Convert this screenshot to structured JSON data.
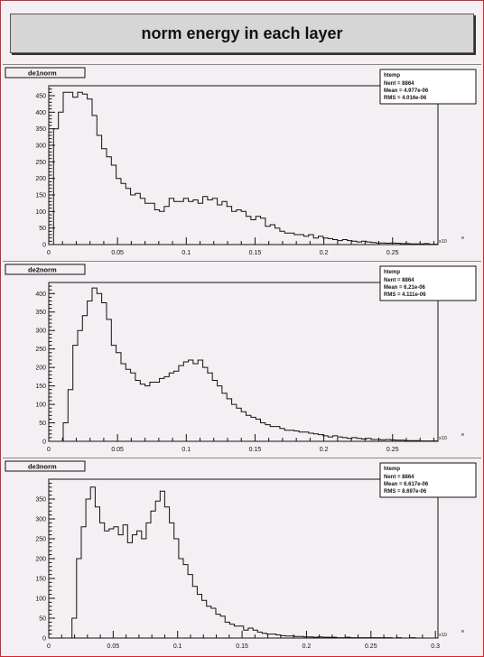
{
  "window": {
    "title": "norm energy in each layer"
  },
  "chart_data": [
    {
      "type": "bar",
      "hist_name": "de1norm",
      "stats": {
        "title": "htemp",
        "lines": [
          "Nent = 8864",
          "Mean = 4.977e-06",
          "RMS = 4.016e-06"
        ]
      },
      "x_multiplier_label": "x10",
      "x_unit_mark": "e",
      "xlim": [
        0,
        0.283
      ],
      "ylim": [
        0,
        480
      ],
      "x_ticks": [
        0,
        0.05,
        0.1,
        0.15,
        0.2,
        0.25
      ],
      "x_tick_labels": [
        "0",
        "0.05",
        "0.1",
        "0.15",
        "0.2",
        "0.25"
      ],
      "y_ticks": [
        0,
        50,
        100,
        150,
        200,
        250,
        300,
        350,
        400,
        450
      ],
      "bin_width": 0.0035,
      "values": [
        0,
        350,
        400,
        460,
        460,
        445,
        460,
        455,
        440,
        390,
        330,
        290,
        265,
        240,
        200,
        185,
        170,
        150,
        155,
        140,
        125,
        125,
        105,
        100,
        115,
        140,
        130,
        130,
        140,
        130,
        135,
        125,
        145,
        135,
        140,
        120,
        130,
        115,
        100,
        105,
        100,
        85,
        75,
        85,
        80,
        55,
        60,
        50,
        40,
        35,
        35,
        30,
        30,
        25,
        30,
        20,
        25,
        20,
        18,
        15,
        12,
        15,
        12,
        10,
        8,
        10,
        8,
        6,
        5,
        5,
        4,
        5,
        4,
        3,
        3,
        2,
        2,
        2,
        3,
        1,
        1
      ]
    },
    {
      "type": "bar",
      "hist_name": "de2norm",
      "stats": {
        "title": "htemp",
        "lines": [
          "Nent = 8864",
          "Mean = 6.21e-06",
          "RMS = 4.111e-06"
        ]
      },
      "x_multiplier_label": "x10",
      "x_unit_mark": "e",
      "xlim": [
        0,
        0.283
      ],
      "ylim": [
        0,
        430
      ],
      "x_ticks": [
        0,
        0.05,
        0.1,
        0.15,
        0.2,
        0.25
      ],
      "x_tick_labels": [
        "0",
        "0.05",
        "0.1",
        "0.15",
        "0.2",
        "0.25"
      ],
      "y_ticks": [
        0,
        50,
        100,
        150,
        200,
        250,
        300,
        350,
        400
      ],
      "bin_width": 0.0035,
      "values": [
        0,
        0,
        0,
        50,
        140,
        260,
        300,
        340,
        380,
        415,
        400,
        375,
        330,
        260,
        240,
        210,
        195,
        185,
        165,
        155,
        150,
        160,
        160,
        170,
        175,
        185,
        190,
        205,
        215,
        220,
        210,
        220,
        200,
        185,
        165,
        150,
        130,
        115,
        100,
        90,
        80,
        70,
        65,
        60,
        50,
        45,
        40,
        40,
        35,
        30,
        30,
        28,
        25,
        25,
        22,
        20,
        18,
        15,
        12,
        15,
        12,
        10,
        8,
        10,
        8,
        6,
        8,
        5,
        5,
        4,
        5,
        4,
        3,
        3,
        2,
        2,
        2,
        1,
        1,
        1,
        1
      ]
    },
    {
      "type": "bar",
      "hist_name": "de3norm",
      "stats": {
        "title": "htemp",
        "lines": [
          "Nent = 8864",
          "Mean = 6.617e-06",
          "RMS = 8.697e-06"
        ]
      },
      "x_multiplier_label": "x10",
      "x_unit_mark": "e",
      "xlim": [
        0,
        0.302
      ],
      "ylim": [
        0,
        400
      ],
      "x_ticks": [
        0,
        0.05,
        0.1,
        0.15,
        0.2,
        0.25,
        0.3
      ],
      "x_tick_labels": [
        "0",
        "0.05",
        "0.1",
        "0.15",
        "0.2",
        "0.25",
        "0.3"
      ],
      "y_ticks": [
        0,
        50,
        100,
        150,
        200,
        250,
        300,
        350
      ],
      "bin_width": 0.0036,
      "values": [
        0,
        0,
        0,
        0,
        0,
        50,
        200,
        280,
        350,
        380,
        330,
        290,
        270,
        275,
        280,
        260,
        285,
        240,
        260,
        270,
        250,
        290,
        320,
        345,
        370,
        330,
        290,
        250,
        200,
        185,
        160,
        130,
        110,
        95,
        80,
        75,
        60,
        55,
        40,
        35,
        30,
        30,
        20,
        25,
        20,
        15,
        12,
        10,
        10,
        8,
        6,
        5,
        5,
        4,
        4,
        3,
        3,
        2,
        3,
        2,
        2,
        2,
        1,
        1,
        2,
        1,
        1,
        1,
        1,
        1,
        1,
        1,
        1,
        1,
        0,
        1,
        0,
        0,
        1,
        0,
        0,
        0
      ]
    }
  ]
}
